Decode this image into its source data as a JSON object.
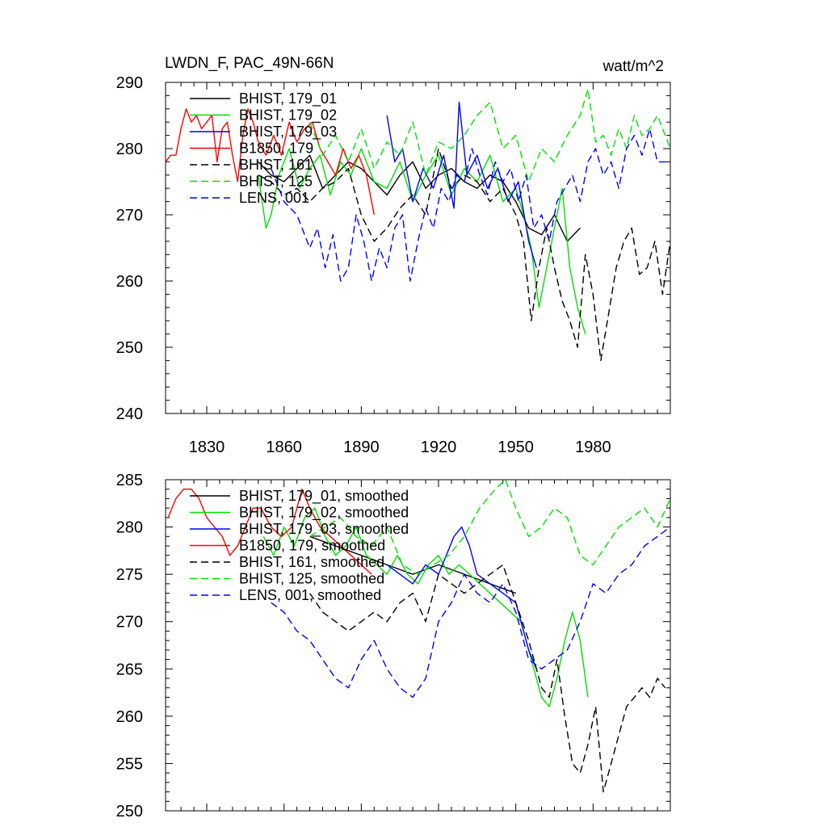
{
  "chart_data": [
    {
      "type": "line",
      "title": "LWDN_F, PAC_49N-66N",
      "units": "watt/m^2",
      "xlim": [
        1814,
        2010
      ],
      "ylim": [
        240,
        290
      ],
      "yticks": [
        "240",
        "250",
        "260",
        "270",
        "280",
        "290"
      ],
      "xticks": [
        1830,
        1860,
        1890,
        1920,
        1950,
        1980
      ],
      "xtick_labels": [
        "1830",
        "1860",
        "1890",
        "1920",
        "1950",
        "1980"
      ],
      "legend_position": "top-left",
      "series": [
        {
          "name": "BHIST, 179_01",
          "color": "#000000",
          "dashed": false,
          "x": [
            1850,
            1855,
            1860,
            1865,
            1870,
            1875,
            1880,
            1885,
            1890,
            1895,
            1900,
            1905,
            1910,
            1915,
            1920,
            1925,
            1930,
            1935,
            1940,
            1945,
            1950,
            1955,
            1960,
            1965,
            1970,
            1975
          ],
          "y": [
            278,
            276,
            275,
            277,
            279,
            274,
            276,
            278,
            277,
            275,
            273,
            276,
            278,
            274,
            276,
            277,
            275,
            274,
            276,
            275,
            272,
            268,
            267,
            270,
            266,
            268
          ]
        },
        {
          "name": "BHIST, 179_02",
          "color": "#00e000",
          "dashed": false,
          "x": [
            1850,
            1853,
            1855,
            1858,
            1862,
            1866,
            1870,
            1874,
            1878,
            1882,
            1886,
            1890,
            1895,
            1900,
            1905,
            1910,
            1915,
            1920,
            1925,
            1930,
            1935,
            1940,
            1945,
            1950,
            1953,
            1956,
            1959,
            1962,
            1965,
            1968,
            1971,
            1974,
            1977
          ],
          "y": [
            276,
            268,
            270,
            276,
            280,
            274,
            277,
            279,
            273,
            278,
            276,
            280,
            275,
            274,
            278,
            272,
            276,
            279,
            273,
            277,
            275,
            279,
            272,
            274,
            270,
            265,
            256,
            262,
            268,
            274,
            262,
            256,
            252
          ]
        },
        {
          "name": "BHIST, 179_03",
          "color": "#0000ff",
          "dashed": false,
          "x": [
            1900,
            1903,
            1906,
            1910,
            1914,
            1918,
            1922,
            1926,
            1928,
            1931,
            1935,
            1939,
            1943,
            1947,
            1951,
            1955,
            1958
          ],
          "y": [
            285,
            278,
            280,
            272,
            277,
            274,
            279,
            271,
            287,
            276,
            279,
            274,
            277,
            272,
            275,
            266,
            262
          ]
        },
        {
          "name": "B1850, 179",
          "color": "#ff0000",
          "dashed": false,
          "x": [
            1814,
            1816,
            1818,
            1820,
            1822,
            1824,
            1826,
            1828,
            1830,
            1832,
            1834,
            1836,
            1838,
            1840,
            1842,
            1844,
            1846,
            1848,
            1850,
            1853,
            1856,
            1859,
            1862,
            1865,
            1868,
            1871,
            1874,
            1877,
            1880,
            1883,
            1886,
            1889,
            1892,
            1895
          ],
          "y": [
            278,
            279,
            279,
            283,
            286,
            284,
            285,
            283,
            284,
            285,
            278,
            283,
            284,
            279,
            275,
            282,
            286,
            284,
            281,
            279,
            282,
            279,
            284,
            281,
            283,
            284,
            280,
            278,
            276,
            280,
            277,
            279,
            276,
            270
          ]
        },
        {
          "name": "BHIST, 161",
          "color": "#000000",
          "dashed": true,
          "x": [
            1850,
            1855,
            1860,
            1865,
            1870,
            1875,
            1880,
            1885,
            1890,
            1895,
            1900,
            1905,
            1910,
            1915,
            1920,
            1925,
            1930,
            1935,
            1940,
            1945,
            1950,
            1953,
            1956,
            1959,
            1962,
            1965,
            1968,
            1971,
            1974,
            1977,
            1980,
            1983,
            1986,
            1989,
            1992,
            1995,
            1998,
            2001,
            2004,
            2007,
            2010
          ],
          "y": [
            276,
            275,
            273,
            274,
            272,
            274,
            275,
            277,
            270,
            266,
            268,
            271,
            273,
            270,
            280,
            274,
            276,
            275,
            272,
            274,
            270,
            266,
            254,
            262,
            268,
            262,
            257,
            254,
            250,
            264,
            258,
            248,
            255,
            262,
            266,
            268,
            261,
            262,
            266,
            258,
            266
          ]
        },
        {
          "name": "BHIST, 125",
          "color": "#00e000",
          "dashed": true,
          "x": [
            1870,
            1875,
            1880,
            1885,
            1890,
            1895,
            1900,
            1905,
            1910,
            1915,
            1920,
            1925,
            1930,
            1935,
            1940,
            1945,
            1950,
            1955,
            1960,
            1965,
            1970,
            1975,
            1978,
            1981,
            1984,
            1987,
            1990,
            1993,
            1996,
            1999,
            2002,
            2005,
            2010
          ],
          "y": [
            284,
            279,
            282,
            278,
            283,
            277,
            281,
            279,
            284,
            276,
            281,
            280,
            282,
            285,
            287,
            280,
            282,
            275,
            280,
            278,
            282,
            285,
            289,
            281,
            282,
            279,
            283,
            280,
            285,
            282,
            283,
            285,
            280
          ]
        },
        {
          "name": "LENS, 001",
          "color": "#0000ff",
          "dashed": true,
          "x": [
            1855,
            1860,
            1865,
            1870,
            1873,
            1876,
            1879,
            1882,
            1885,
            1888,
            1891,
            1894,
            1897,
            1900,
            1903,
            1906,
            1909,
            1912,
            1915,
            1918,
            1921,
            1924,
            1927,
            1930,
            1933,
            1936,
            1939,
            1942,
            1945,
            1948,
            1951,
            1954,
            1957,
            1960,
            1963,
            1966,
            1969,
            1972,
            1975,
            1978,
            1981,
            1984,
            1987,
            1990,
            1993,
            1996,
            1999,
            2002,
            2005,
            2010
          ],
          "y": [
            277,
            272,
            270,
            265,
            268,
            262,
            267,
            260,
            262,
            270,
            266,
            260,
            265,
            262,
            268,
            270,
            260,
            266,
            271,
            268,
            274,
            272,
            276,
            275,
            280,
            276,
            273,
            278,
            275,
            277,
            272,
            276,
            268,
            270,
            266,
            272,
            274,
            276,
            272,
            278,
            280,
            276,
            278,
            274,
            280,
            282,
            279,
            283,
            278,
            278
          ]
        }
      ]
    },
    {
      "type": "line",
      "title": "",
      "xlim": [
        1814,
        2010
      ],
      "ylim": [
        250,
        285
      ],
      "yticks": [
        "250",
        "255",
        "260",
        "265",
        "270",
        "275",
        "280",
        "285"
      ],
      "xticks": [
        1830,
        1860,
        1890,
        1920,
        1950,
        1980
      ],
      "legend_position": "top-left",
      "series": [
        {
          "name": "BHIST, 179_01, smoothed",
          "color": "#000000",
          "dashed": false,
          "x": [
            1870,
            1880,
            1890,
            1900,
            1910,
            1920,
            1930,
            1940,
            1950
          ],
          "y": [
            279,
            278,
            277,
            276,
            275,
            276,
            275,
            274,
            273
          ]
        },
        {
          "name": "BHIST, 179_02, smoothed",
          "color": "#00e000",
          "dashed": false,
          "x": [
            1852,
            1856,
            1860,
            1864,
            1868,
            1872,
            1876,
            1880,
            1884,
            1888,
            1892,
            1896,
            1900,
            1904,
            1908,
            1912,
            1916,
            1920,
            1924,
            1928,
            1932,
            1936,
            1940,
            1944,
            1948,
            1952,
            1956,
            1960,
            1963,
            1966,
            1969,
            1972,
            1975,
            1978
          ],
          "y": [
            279,
            277,
            280,
            278,
            281,
            282,
            279,
            277,
            278,
            280,
            277,
            276,
            275,
            277,
            275,
            274,
            276,
            277,
            275,
            276,
            275,
            274,
            273,
            272,
            271,
            270,
            266,
            262,
            261,
            264,
            268,
            271,
            268,
            262
          ]
        },
        {
          "name": "BHIST, 179_03, smoothed",
          "color": "#0000ff",
          "dashed": false,
          "x": [
            1900,
            1905,
            1910,
            1915,
            1920,
            1923,
            1926,
            1929,
            1932,
            1935,
            1940,
            1945,
            1950,
            1955,
            1958
          ],
          "y": [
            276,
            275,
            274,
            276,
            275,
            277,
            279,
            280,
            278,
            275,
            274,
            273,
            272,
            267,
            265
          ]
        },
        {
          "name": "B1850, 179, smoothed",
          "color": "#ff0000",
          "dashed": false,
          "x": [
            1815,
            1818,
            1821,
            1824,
            1827,
            1830,
            1833,
            1836,
            1839,
            1842,
            1845,
            1848,
            1851,
            1855,
            1859,
            1863,
            1867,
            1870,
            1874,
            1878,
            1882,
            1886,
            1890,
            1894
          ],
          "y": [
            281,
            283,
            284,
            284,
            283,
            281,
            280,
            279,
            277,
            278,
            280,
            282,
            282,
            280,
            279,
            280,
            284,
            282,
            280,
            279,
            278,
            277,
            276,
            275
          ]
        },
        {
          "name": "BHIST, 161, smoothed",
          "color": "#000000",
          "dashed": true,
          "x": [
            1870,
            1875,
            1880,
            1885,
            1890,
            1895,
            1900,
            1905,
            1910,
            1915,
            1920,
            1925,
            1930,
            1935,
            1940,
            1945,
            1950,
            1955,
            1960,
            1963,
            1966,
            1969,
            1972,
            1975,
            1978,
            1981,
            1984,
            1987,
            1990,
            1993,
            1996,
            1999,
            2002,
            2005,
            2008
          ],
          "y": [
            273,
            271,
            270,
            269,
            270,
            271,
            270,
            272,
            273,
            270,
            275,
            274,
            273,
            274,
            275,
            276,
            272,
            268,
            263,
            262,
            266,
            260,
            255,
            254,
            257,
            261,
            252,
            255,
            258,
            261,
            262,
            263,
            262,
            264,
            263
          ]
        },
        {
          "name": "BHIST, 125, smoothed",
          "color": "#00e000",
          "dashed": true,
          "x": [
            1870,
            1876,
            1882,
            1888,
            1894,
            1900,
            1906,
            1912,
            1918,
            1924,
            1930,
            1936,
            1942,
            1946,
            1950,
            1955,
            1960,
            1965,
            1970,
            1975,
            1980,
            1985,
            1990,
            1995,
            2000,
            2005,
            2010
          ],
          "y": [
            279,
            280,
            281,
            279,
            278,
            280,
            276,
            275,
            276,
            277,
            279,
            282,
            284,
            285,
            282,
            279,
            280,
            282,
            281,
            277,
            276,
            278,
            280,
            281,
            282,
            280,
            283
          ]
        },
        {
          "name": "LENS, 001, smoothed",
          "color": "#0000ff",
          "dashed": true,
          "x": [
            1855,
            1860,
            1865,
            1870,
            1875,
            1880,
            1885,
            1890,
            1895,
            1900,
            1905,
            1910,
            1915,
            1920,
            1925,
            1930,
            1935,
            1940,
            1945,
            1950,
            1955,
            1960,
            1965,
            1970,
            1975,
            1980,
            1985,
            1990,
            1995,
            2000,
            2005,
            2010
          ],
          "y": [
            272,
            271,
            269,
            268,
            266,
            264,
            263,
            266,
            268,
            265,
            263,
            262,
            264,
            270,
            272,
            275,
            273,
            272,
            274,
            271,
            266,
            265,
            266,
            267,
            270,
            274,
            273,
            275,
            276,
            278,
            279,
            280
          ]
        }
      ]
    }
  ]
}
